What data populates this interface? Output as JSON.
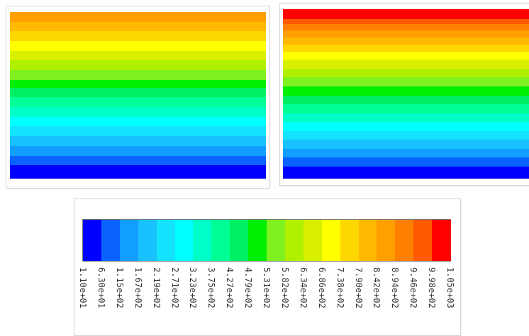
{
  "chart_data": {
    "type": "heatmap",
    "colorbar": {
      "labels": [
        "1.10e+01",
        "6.30e+01",
        "1.15e+02",
        "1.67e+02",
        "2.19e+02",
        "2.71e+02",
        "3.23e+02",
        "3.75e+02",
        "4.27e+02",
        "4.79e+02",
        "5.31e+02",
        "5.82e+02",
        "6.34e+02",
        "6.86e+02",
        "7.38e+02",
        "7.90e+02",
        "8.42e+02",
        "8.94e+02",
        "9.46e+02",
        "9.98e+02",
        "1.05e+03"
      ],
      "colors": [
        "#0000ff",
        "#0b63ff",
        "#129eff",
        "#19c1ff",
        "#14e3ff",
        "#00ffff",
        "#00ffc8",
        "#00ff96",
        "#00f064",
        "#00ee00",
        "#7ff020",
        "#aff000",
        "#d8f000",
        "#ffff00",
        "#ffd700",
        "#ffb900",
        "#ffa000",
        "#ff8000",
        "#ff5a00",
        "#ff0000"
      ]
    },
    "plots": [
      {
        "name": "left-contour",
        "bands": [
          "#ffa000",
          "#ffb900",
          "#ffd700",
          "#ffff00",
          "#d8f000",
          "#aff000",
          "#7ff020",
          "#00ee00",
          "#00f064",
          "#00ff96",
          "#00ffc8",
          "#00ffff",
          "#14e3ff",
          "#19c1ff",
          "#129eff",
          "#0b63ff",
          "#0000ff"
        ],
        "weights": [
          1,
          1,
          1,
          1,
          1,
          1,
          1,
          0.8,
          1,
          1,
          1,
          1,
          1,
          1,
          1,
          1,
          1.3
        ]
      },
      {
        "name": "right-contour",
        "bands": [
          "#ff0000",
          "#ff5a00",
          "#ff8000",
          "#ffa000",
          "#ffb900",
          "#ffd700",
          "#ffff00",
          "#d8f000",
          "#aff000",
          "#7ff020",
          "#00ee00",
          "#00f064",
          "#00ff96",
          "#00ffc8",
          "#00ffff",
          "#14e3ff",
          "#19c1ff",
          "#129eff",
          "#0b63ff",
          "#0000ff"
        ],
        "weights": [
          1.1,
          0.6,
          0.7,
          0.8,
          0.8,
          0.8,
          0.9,
          1,
          1,
          1,
          1,
          1,
          1,
          1,
          1,
          1,
          1,
          1,
          1,
          1.3
        ]
      }
    ]
  }
}
